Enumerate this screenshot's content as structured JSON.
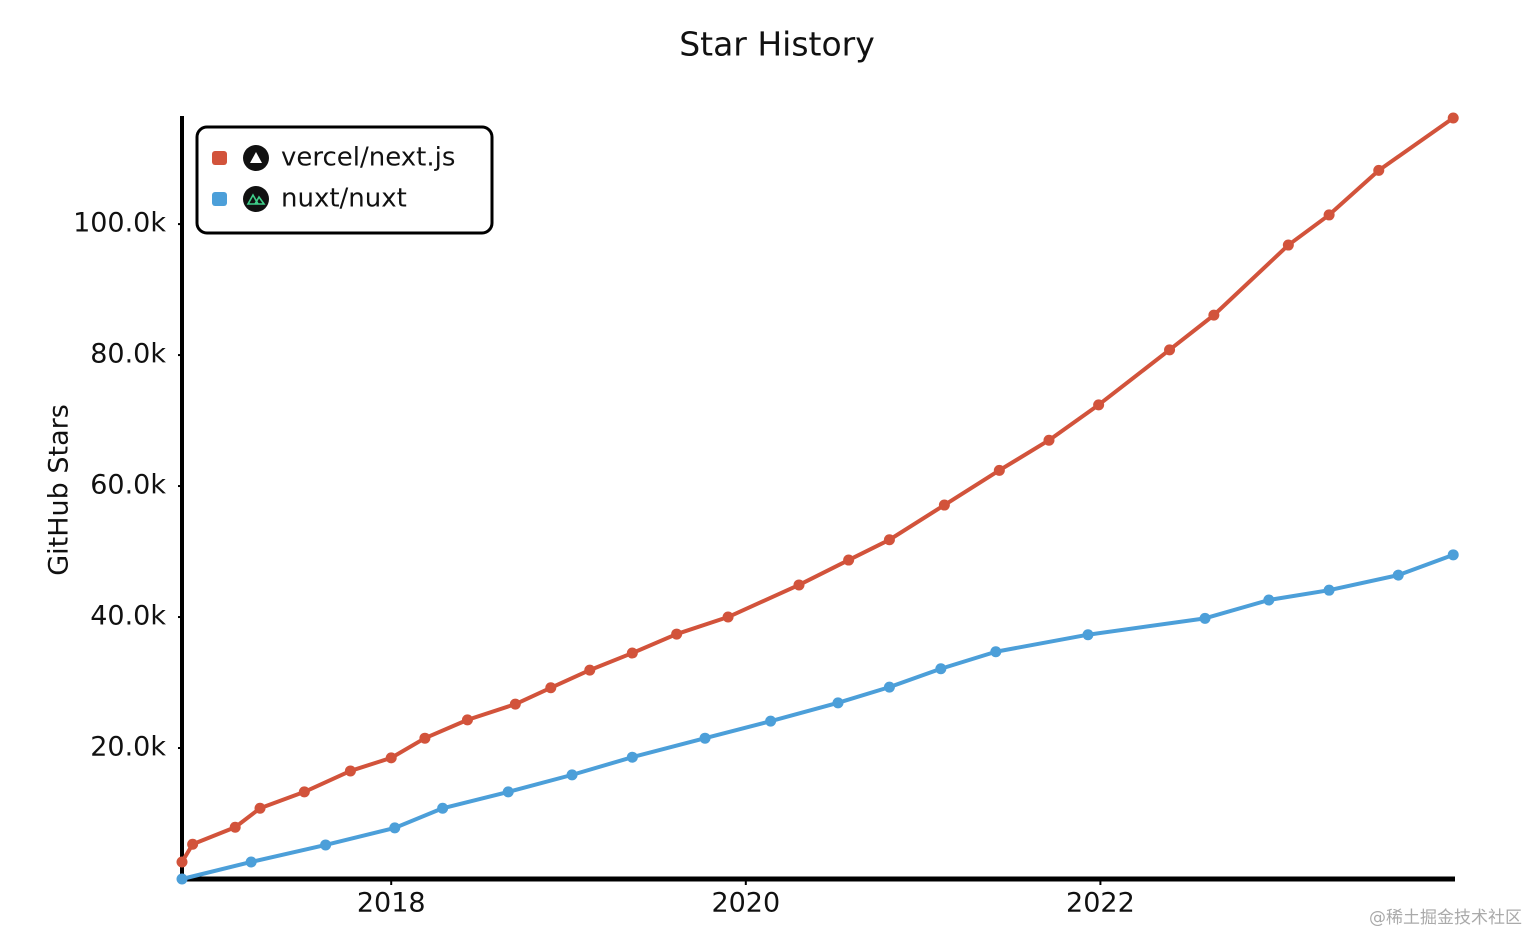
{
  "chart_data": {
    "type": "line",
    "title": "Star History",
    "ylabel": "GitHub Stars",
    "watermark": "@稀土掘金技术社区",
    "xlim": [
      2016.82,
      2024.0
    ],
    "xticks": [
      2018,
      2020,
      2022
    ],
    "ylim": [
      0,
      116200
    ],
    "yticks": [
      {
        "value": 20000,
        "label": "20.0k"
      },
      {
        "value": 40000,
        "label": "40.0k"
      },
      {
        "value": 60000,
        "label": "60.0k"
      },
      {
        "value": 80000,
        "label": "80.0k"
      },
      {
        "value": 100000,
        "label": "100.0k"
      }
    ],
    "legend": "top-left",
    "series": [
      {
        "name": "vercel/next.js",
        "color": "#d2533b",
        "x": [
          2016.82,
          2016.88,
          2017.12,
          2017.26,
          2017.51,
          2017.77,
          2018.0,
          2018.19,
          2018.43,
          2018.7,
          2018.9,
          2019.12,
          2019.36,
          2019.61,
          2019.9,
          2020.3,
          2020.58,
          2020.81,
          2021.12,
          2021.43,
          2021.71,
          2021.99,
          2022.39,
          2022.64,
          2023.06,
          2023.29,
          2023.57,
          2023.99
        ],
        "values": [
          2600,
          5300,
          7900,
          10800,
          13300,
          16500,
          18500,
          21500,
          24300,
          26700,
          29200,
          31900,
          34500,
          37400,
          40000,
          44900,
          48700,
          51800,
          57100,
          62400,
          67000,
          72400,
          80800,
          86100,
          96800,
          101400,
          108200,
          116200
        ]
      },
      {
        "name": "nuxt/nuxt",
        "color": "#4c9fd9",
        "x": [
          2016.82,
          2017.21,
          2017.63,
          2018.02,
          2018.29,
          2018.66,
          2019.02,
          2019.36,
          2019.77,
          2020.14,
          2020.52,
          2020.81,
          2021.1,
          2021.41,
          2021.93,
          2022.59,
          2022.95,
          2023.29,
          2023.68,
          2023.99
        ],
        "values": [
          0,
          2600,
          5200,
          7800,
          10800,
          13300,
          15900,
          18600,
          21500,
          24100,
          26900,
          29300,
          32100,
          34700,
          37300,
          39800,
          42600,
          44100,
          46400,
          49500
        ]
      }
    ]
  }
}
